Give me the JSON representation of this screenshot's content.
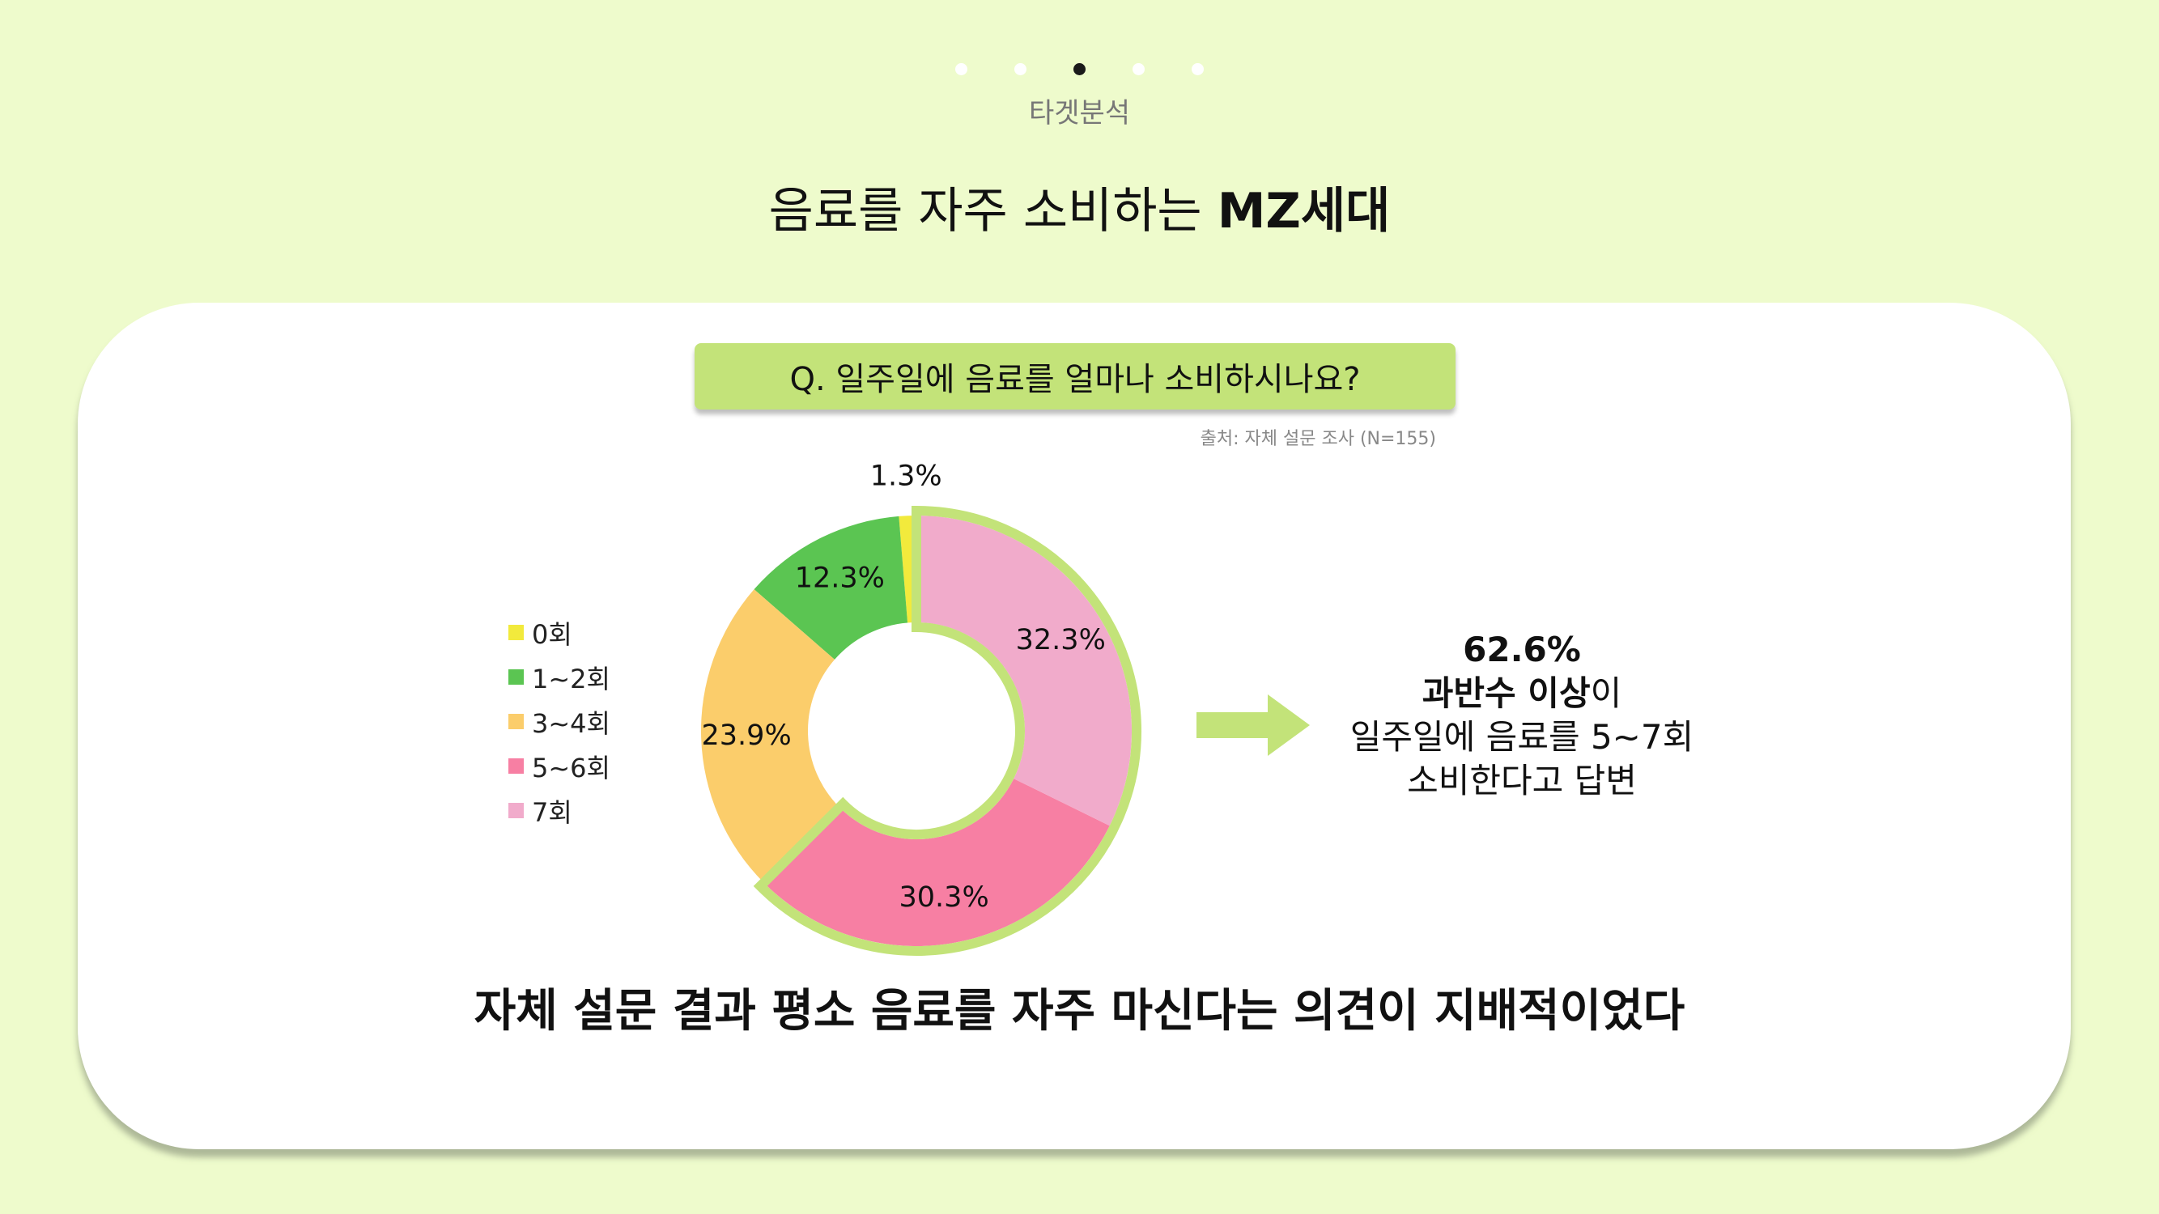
{
  "header": {
    "section_label": "타겟분석",
    "title_regular": "음료를 자주 소비하는 ",
    "title_bold": "MZ세대",
    "page_dots": 5,
    "active_dot": 3
  },
  "question": "Q. 일주일에 음료를 얼마나 소비하시나요?",
  "source": "출처: 자체 설문 조사 (N=155)",
  "callout": {
    "percent": "62.6%",
    "line2_bold": "과반수 이상",
    "line2_rest": "이",
    "line3": "일주일에 음료를 5~7회",
    "line4": "소비한다고 답변"
  },
  "conclusion": "자체 설문 결과 평소 음료를 자주 마신다는 의견이 지배적이었다",
  "colors": {
    "background": "#eefbcc",
    "accent_green": "#c3e379",
    "highlight_stroke": "#c3e379"
  },
  "chart_data": {
    "type": "pie",
    "donut": true,
    "categories": [
      "0회",
      "1~2회",
      "3~4회",
      "5~6회",
      "7회"
    ],
    "values": [
      1.3,
      12.3,
      23.9,
      30.3,
      32.3
    ],
    "labels": [
      "1.3%",
      "12.3%",
      "23.9%",
      "30.3%",
      "32.3%"
    ],
    "colors": [
      "#f2ea3c",
      "#5bc552",
      "#fbcd6b",
      "#f77fa3",
      "#f1abcb"
    ],
    "highlighted": [
      "5~6회",
      "7회"
    ],
    "legend_position": "left",
    "start_angle_deg": 0,
    "direction": "counterclockwise"
  }
}
